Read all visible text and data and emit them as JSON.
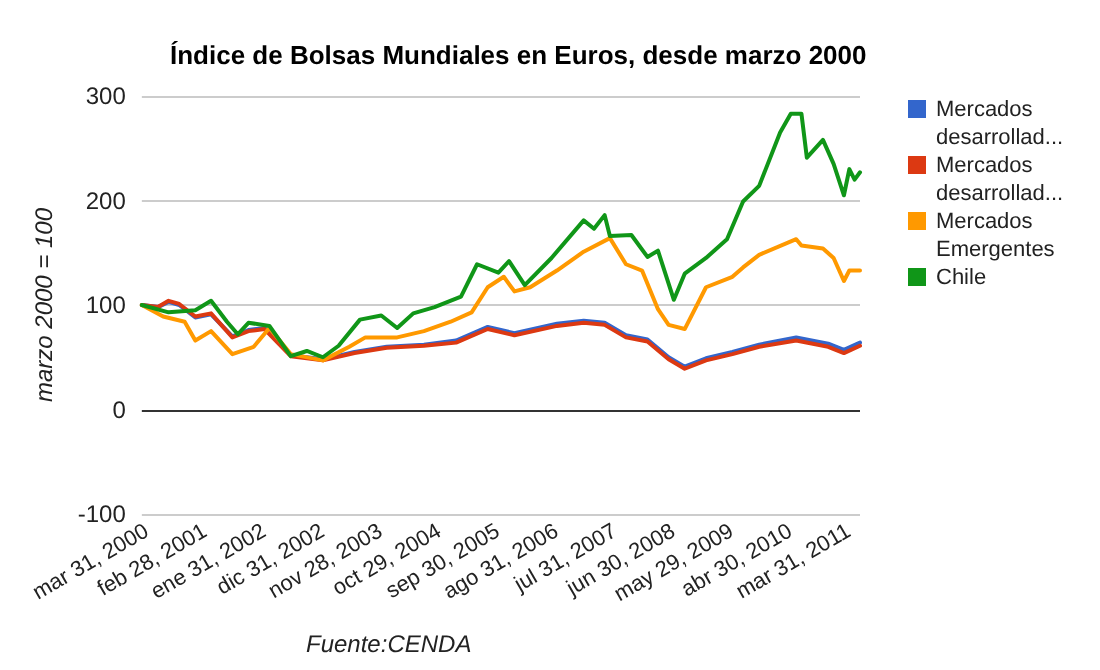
{
  "chart_data": {
    "type": "line",
    "title": "Índice de Bolsas Mundiales en Euros, desde marzo 2000",
    "ylabel": "marzo 2000 = 100",
    "annotations": [
      "Fuente:CENDA"
    ],
    "xlim": [
      "2000-03",
      "2011-06"
    ],
    "xticks": [
      {
        "value": "2000-03-31",
        "label": "mar 31, 2000"
      },
      {
        "value": "2001-02-28",
        "label": "feb 28, 2001"
      },
      {
        "value": "2002-01-31",
        "label": "ene 31, 2002"
      },
      {
        "value": "2002-12-31",
        "label": "dic 31, 2002"
      },
      {
        "value": "2003-11-28",
        "label": "nov 28, 2003"
      },
      {
        "value": "2004-10-29",
        "label": "oct 29, 2004"
      },
      {
        "value": "2005-09-30",
        "label": "sep 30, 2005"
      },
      {
        "value": "2006-08-31",
        "label": "ago 31, 2006"
      },
      {
        "value": "2007-07-31",
        "label": "jul 31, 2007"
      },
      {
        "value": "2008-06-30",
        "label": "jun 30, 2008"
      },
      {
        "value": "2009-05-29",
        "label": "may 29, 2009"
      },
      {
        "value": "2010-04-30",
        "label": "abr 30, 2010"
      },
      {
        "value": "2011-03-31",
        "label": "mar 31, 2011"
      }
    ],
    "ylim": [
      -100,
      300
    ],
    "yticks": [
      -100,
      0,
      100,
      200,
      300
    ],
    "grid": "y",
    "legend": "right",
    "marker": "none",
    "line_style": "solid",
    "series": [
      {
        "name": "Mercados desarrollad...",
        "color": "#3366cc",
        "x": [
          "2000-03",
          "2000-06",
          "2000-08",
          "2000-10",
          "2001-01",
          "2001-04",
          "2001-08",
          "2001-11",
          "2002-02",
          "2002-07",
          "2003-01",
          "2003-07",
          "2004-01",
          "2004-08",
          "2005-02",
          "2005-08",
          "2006-01",
          "2006-09",
          "2007-02",
          "2007-06",
          "2007-10",
          "2008-02",
          "2008-06",
          "2008-09",
          "2009-01",
          "2009-06",
          "2009-11",
          "2010-06",
          "2010-12",
          "2011-03",
          "2011-06"
        ],
        "values": [
          100,
          98,
          103,
          100,
          88,
          91,
          70,
          76,
          78,
          52,
          48,
          55,
          60,
          62,
          66,
          79,
          73,
          82,
          85,
          83,
          71,
          67,
          50,
          41,
          49,
          55,
          62,
          69,
          63,
          57,
          64
        ]
      },
      {
        "name": "Mercados desarrollad...",
        "color": "#dc3912",
        "x": [
          "2000-03",
          "2000-06",
          "2000-08",
          "2000-10",
          "2001-01",
          "2001-04",
          "2001-08",
          "2001-11",
          "2002-02",
          "2002-07",
          "2003-01",
          "2003-07",
          "2004-01",
          "2004-08",
          "2005-02",
          "2005-08",
          "2006-01",
          "2006-09",
          "2007-02",
          "2007-06",
          "2007-10",
          "2008-02",
          "2008-06",
          "2008-09",
          "2009-01",
          "2009-06",
          "2009-11",
          "2010-06",
          "2010-12",
          "2011-03",
          "2011-06"
        ],
        "values": [
          100,
          98,
          104,
          101,
          89,
          92,
          69,
          75,
          77,
          51,
          47,
          54,
          59,
          61,
          64,
          77,
          71,
          80,
          83,
          81,
          69,
          65,
          48,
          39,
          47,
          53,
          60,
          66,
          60,
          54,
          61
        ]
      },
      {
        "name": "Mercados Emergentes",
        "color": "#ff9900",
        "x": [
          "2000-03",
          "2000-07",
          "2000-11",
          "2001-01",
          "2001-04",
          "2001-08",
          "2001-12",
          "2002-03",
          "2002-07",
          "2003-01",
          "2003-06",
          "2003-09",
          "2004-03",
          "2004-08",
          "2005-01",
          "2005-05",
          "2005-08",
          "2005-11",
          "2006-01",
          "2006-04",
          "2006-09",
          "2007-02",
          "2007-07",
          "2007-10",
          "2008-01",
          "2008-04",
          "2008-06",
          "2008-09",
          "2009-01",
          "2009-06",
          "2009-08",
          "2009-11",
          "2010-06",
          "2010-07",
          "2010-11",
          "2011-01",
          "2011-03",
          "2011-04",
          "2011-06"
        ],
        "values": [
          100,
          89,
          84,
          66,
          75,
          53,
          60,
          78,
          53,
          47,
          60,
          69,
          69,
          75,
          84,
          93,
          117,
          127,
          113,
          117,
          133,
          151,
          164,
          139,
          133,
          96,
          81,
          77,
          117,
          127,
          136,
          148,
          163,
          157,
          154,
          145,
          123,
          133,
          133
        ]
      },
      {
        "name": "Chile",
        "color": "#109618",
        "x": [
          "2000-03",
          "2000-08",
          "2001-01",
          "2001-04",
          "2001-07",
          "2001-09",
          "2001-11",
          "2002-03",
          "2002-07",
          "2002-10",
          "2003-01",
          "2003-04",
          "2003-08",
          "2003-12",
          "2004-03",
          "2004-06",
          "2004-10",
          "2005-03",
          "2005-06",
          "2005-10",
          "2005-12",
          "2006-03",
          "2006-08",
          "2007-02",
          "2007-04",
          "2007-06",
          "2007-07",
          "2007-11",
          "2008-02",
          "2008-04",
          "2008-07",
          "2008-09",
          "2009-01",
          "2009-05",
          "2009-08",
          "2009-11",
          "2010-03",
          "2010-05",
          "2010-07",
          "2010-08",
          "2010-11",
          "2011-01",
          "2011-03",
          "2011-04",
          "2011-05",
          "2011-06"
        ],
        "values": [
          100,
          93,
          95,
          104,
          84,
          72,
          83,
          80,
          51,
          56,
          50,
          61,
          86,
          90,
          78,
          92,
          98,
          108,
          139,
          131,
          142,
          119,
          145,
          181,
          173,
          186,
          166,
          167,
          146,
          152,
          105,
          130,
          145,
          163,
          199,
          214,
          265,
          283,
          283,
          241,
          258,
          235,
          205,
          230,
          220,
          227
        ]
      }
    ]
  }
}
